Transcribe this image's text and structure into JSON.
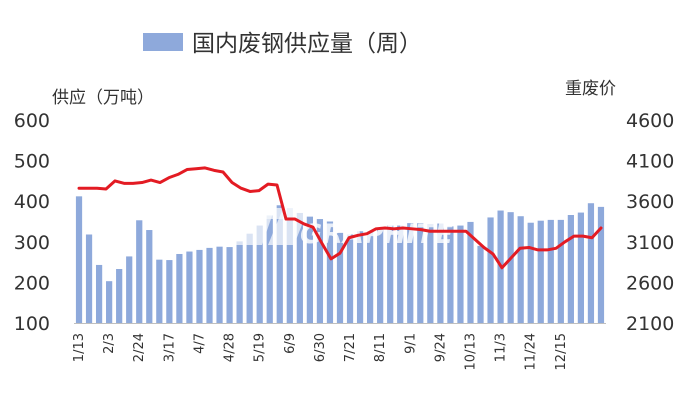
{
  "chart_data": {
    "type": "bar+line",
    "legend": [
      {
        "label": "国内废钢供应量（周）",
        "color": "#8EA9DB",
        "marker": "bar"
      }
    ],
    "y_left_title": "供应（万吨）",
    "y_right_title": "重废价",
    "y_left": {
      "min": 100,
      "max": 600,
      "ticks": [
        "600",
        "500",
        "400",
        "300",
        "200",
        "100"
      ]
    },
    "y_right": {
      "min": 2100,
      "max": 4600,
      "ticks": [
        "4600",
        "4100",
        "3600",
        "3100",
        "2600",
        "2100"
      ]
    },
    "x_tick_labels": [
      "1/13",
      "2/3",
      "2/24",
      "3/17",
      "4/7",
      "4/28",
      "5/19",
      "6/9",
      "6/30",
      "7/21",
      "8/11",
      "9/1",
      "9/24",
      "10/13",
      "11/3",
      "11/24",
      "12/15"
    ],
    "series": [
      {
        "kind": "bar",
        "color": "#8EA9DB",
        "values": [
          412,
          318,
          243,
          203,
          233,
          264,
          353,
          329,
          256,
          255,
          270,
          276,
          280,
          285,
          288,
          287,
          301,
          320,
          340,
          365,
          390,
          383,
          371,
          362,
          356,
          350,
          322,
          318,
          326,
          326,
          335,
          340,
          340,
          346,
          346,
          344,
          345,
          338,
          340,
          349,
          290,
          360,
          377,
          373,
          363,
          347,
          352,
          354,
          354,
          366,
          372,
          395,
          386
        ]
      },
      {
        "kind": "line",
        "color": "#E31B23",
        "values": [
          3760,
          3760,
          3760,
          3750,
          3850,
          3820,
          3820,
          3830,
          3860,
          3830,
          3890,
          3930,
          3990,
          4000,
          4010,
          3980,
          3960,
          3830,
          3760,
          3720,
          3730,
          3810,
          3800,
          3380,
          3380,
          3320,
          3280,
          3080,
          2890,
          2960,
          3150,
          3180,
          3200,
          3260,
          3270,
          3260,
          3270,
          3260,
          3250,
          3230,
          3230,
          3230,
          3230,
          3230,
          3130,
          3030,
          2950,
          2780,
          2900,
          3020,
          3030,
          3000,
          3000,
          3020,
          3100,
          3170,
          3170,
          3150,
          3270
        ]
      }
    ],
    "grid": false
  },
  "watermark": {
    "logo_text": "聚兴碳素",
    "brand_text": "GRAPHITE"
  }
}
